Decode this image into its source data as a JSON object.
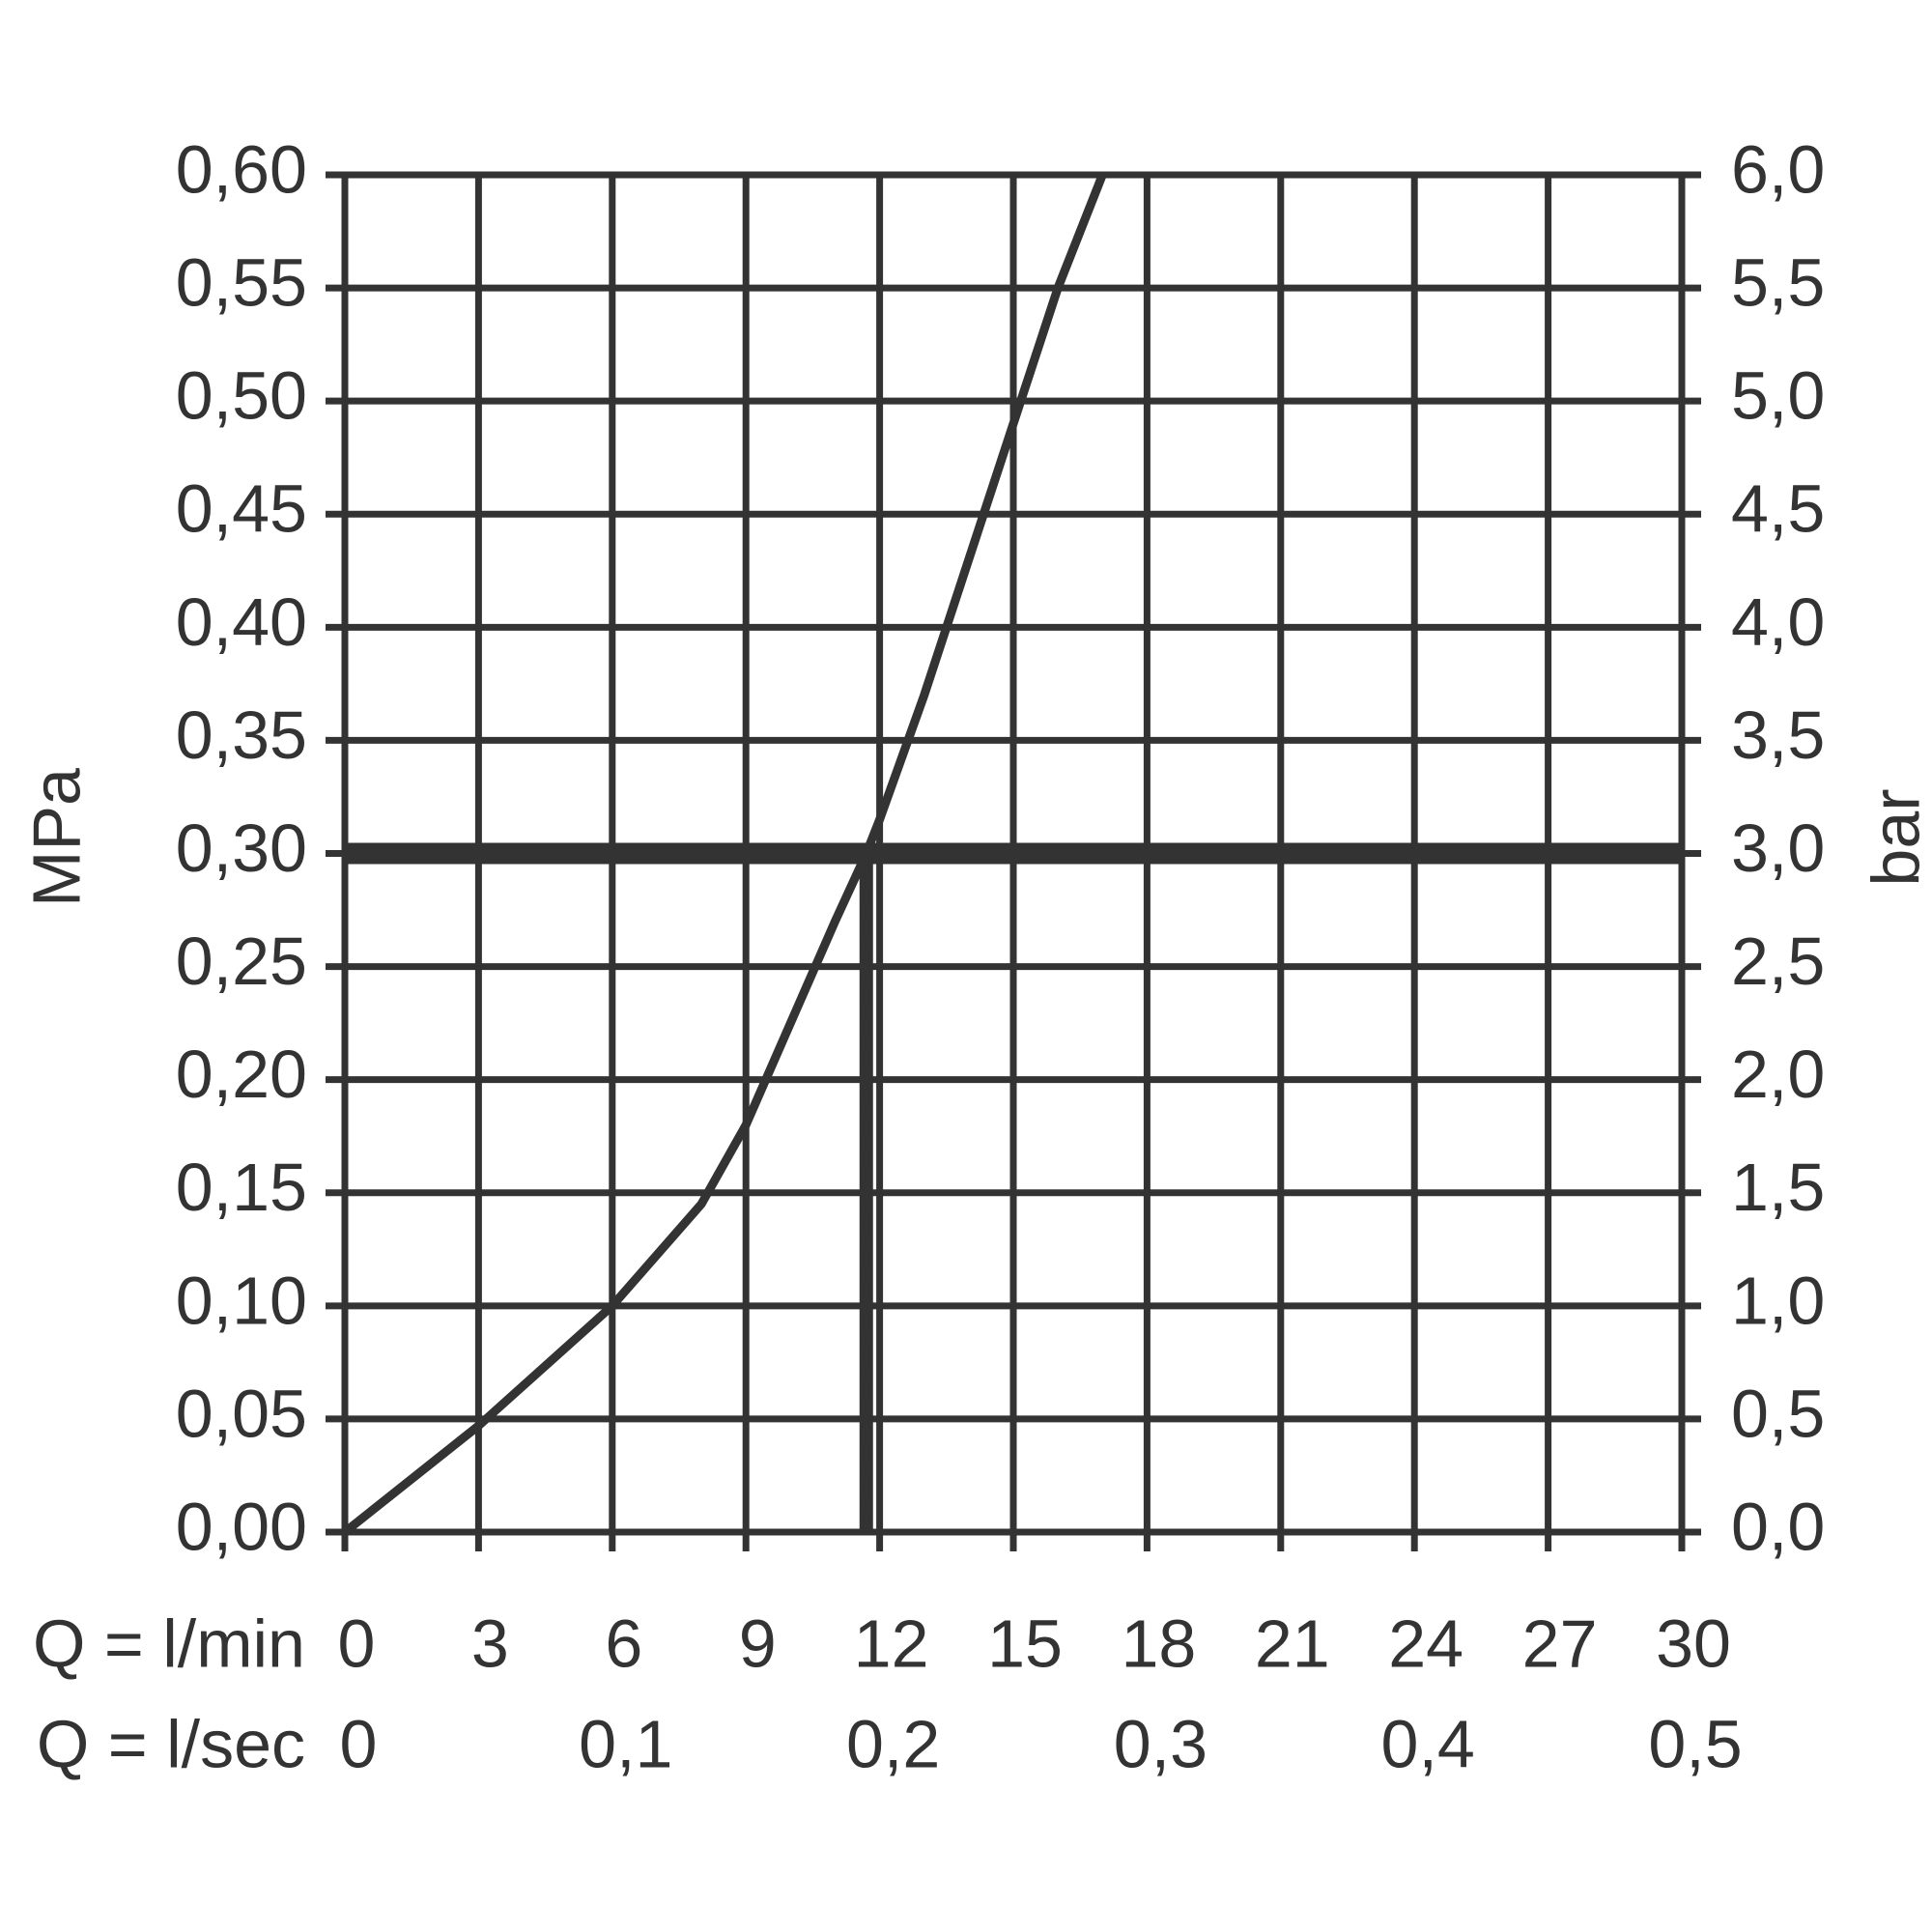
{
  "chart_data": {
    "type": "line",
    "x_label": "Q = l/min",
    "x2_label": "Q = l/sec",
    "y_label": "MPa",
    "y2_label": "bar",
    "color": "#333333",
    "x": [
      0,
      3,
      6,
      8,
      9,
      10,
      11,
      11.7,
      12,
      13,
      14,
      15,
      16,
      17
    ],
    "values": [
      0,
      0.047,
      0.1,
      0.145,
      0.18,
      0.225,
      0.27,
      0.3,
      0.315,
      0.37,
      0.43,
      0.49,
      0.55,
      0.6
    ],
    "hline": 0.3,
    "vline": 11.7,
    "xlim": [
      0,
      30
    ],
    "xticks": [
      0,
      3,
      6,
      9,
      12,
      15,
      18,
      21,
      24,
      27,
      30
    ],
    "x2lim": [
      0,
      0.5
    ],
    "x2ticks": [
      0,
      {
        "value": 0.1,
        "label": "0,1"
      },
      {
        "value": 0.2,
        "label": "0,2"
      },
      {
        "value": 0.3,
        "label": "0,3"
      },
      {
        "value": 0.4,
        "label": "0,4"
      },
      {
        "value": 0.5,
        "label": "0,5"
      }
    ],
    "ylim": [
      0,
      0.6
    ],
    "yticks": [
      {
        "value": 0,
        "label": "0,00"
      },
      {
        "value": 0.05,
        "label": "0,05"
      },
      {
        "value": 0.1,
        "label": "0,10"
      },
      {
        "value": 0.15,
        "label": "0,15"
      },
      {
        "value": 0.2,
        "label": "0,20"
      },
      {
        "value": 0.25,
        "label": "0,25"
      },
      {
        "value": 0.3,
        "label": "0,30"
      },
      {
        "value": 0.35,
        "label": "0,35"
      },
      {
        "value": 0.4,
        "label": "0,40"
      },
      {
        "value": 0.45,
        "label": "0,45"
      },
      {
        "value": 0.5,
        "label": "0,50"
      },
      {
        "value": 0.55,
        "label": "0,55"
      },
      {
        "value": 0.6,
        "label": "0,60"
      }
    ],
    "y2lim": [
      0,
      6
    ],
    "y2ticks": [
      {
        "value": 0,
        "label": "0,0"
      },
      {
        "value": 0.5,
        "label": "0,5"
      },
      {
        "value": 1,
        "label": "1,0"
      },
      {
        "value": 1.5,
        "label": "1,5"
      },
      {
        "value": 2,
        "label": "2,0"
      },
      {
        "value": 2.5,
        "label": "2,5"
      },
      {
        "value": 3,
        "label": "3,0"
      },
      {
        "value": 3.5,
        "label": "3,5"
      },
      {
        "value": 4,
        "label": "4,0"
      },
      {
        "value": 4.5,
        "label": "4,5"
      },
      {
        "value": 5,
        "label": "5,0"
      },
      {
        "value": 5.5,
        "label": "5,5"
      },
      {
        "value": 6,
        "label": "6,0"
      }
    ],
    "grid": true
  }
}
